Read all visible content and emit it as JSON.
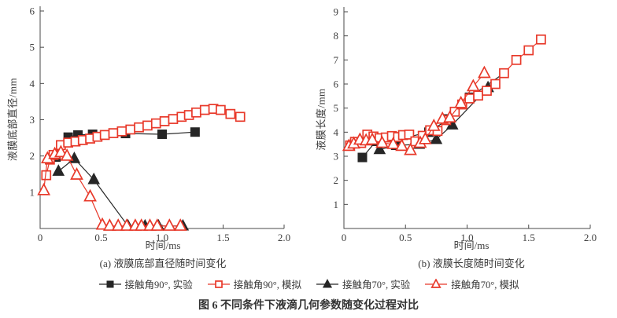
{
  "figure": {
    "caption": "图 6  不同条件下液滴几何参数随变化过程对比",
    "background": "#ffffff",
    "axis_color": "#4a4a4a",
    "text_color": "#3a3a3a",
    "experiment_color": "#262626",
    "simulation_color": "#e8392a",
    "legend": [
      {
        "key": "angle90-exp",
        "label": "接触角90°, 实验",
        "marker": "square-filled",
        "color": "#262626"
      },
      {
        "key": "angle90-sim",
        "label": "接触角90°, 模拟",
        "marker": "square-open",
        "color": "#e8392a"
      },
      {
        "key": "angle70-exp",
        "label": "接触角70°, 实验",
        "marker": "triangle-filled",
        "color": "#262626"
      },
      {
        "key": "angle70-sim",
        "label": "接触角70°, 模拟",
        "marker": "triangle-open",
        "color": "#e8392a"
      }
    ]
  },
  "chart_data": [
    {
      "id": "a",
      "type": "line-scatter",
      "subtitle": "(a) 液膜底部直径随时间变化",
      "xlabel": "时间/ms",
      "ylabel": "液膜底部直径/mm",
      "xlim": [
        0,
        2.0
      ],
      "ylim": [
        0,
        6
      ],
      "xticks": [
        0,
        0.5,
        1.0,
        1.5,
        2.0
      ],
      "xtick_labels": [
        "0",
        "0.5",
        "1.0",
        "1.5",
        "2.0"
      ],
      "yticks": [
        0,
        1,
        2,
        3,
        4,
        5,
        6
      ],
      "ytick_labels": [
        "",
        "1",
        "2",
        "3",
        "4",
        "5",
        "6"
      ],
      "grid": false,
      "legend_position": "bottom-shared",
      "series": [
        {
          "key": "angle90-exp",
          "name": "接触角90°, 实验",
          "marker": "square-filled",
          "color": "#262626",
          "points": [
            [
              0.13,
              1.97
            ],
            [
              0.23,
              2.52
            ],
            [
              0.31,
              2.58
            ],
            [
              0.43,
              2.6
            ],
            [
              0.7,
              2.62
            ],
            [
              1.0,
              2.6
            ],
            [
              1.27,
              2.66
            ]
          ]
        },
        {
          "key": "angle90-sim",
          "name": "接触角90°, 模拟",
          "marker": "square-open",
          "color": "#e8392a",
          "points": [
            [
              0.05,
              1.47
            ],
            [
              0.08,
              1.9
            ],
            [
              0.11,
              2.03
            ],
            [
              0.17,
              2.3
            ],
            [
              0.23,
              2.37
            ],
            [
              0.29,
              2.4
            ],
            [
              0.35,
              2.44
            ],
            [
              0.41,
              2.48
            ],
            [
              0.47,
              2.53
            ],
            [
              0.53,
              2.58
            ],
            [
              0.6,
              2.63
            ],
            [
              0.67,
              2.68
            ],
            [
              0.74,
              2.73
            ],
            [
              0.81,
              2.79
            ],
            [
              0.88,
              2.84
            ],
            [
              0.95,
              2.9
            ],
            [
              1.02,
              2.96
            ],
            [
              1.09,
              3.02
            ],
            [
              1.16,
              3.08
            ],
            [
              1.22,
              3.13
            ],
            [
              1.28,
              3.2
            ],
            [
              1.35,
              3.27
            ],
            [
              1.42,
              3.3
            ],
            [
              1.48,
              3.27
            ],
            [
              1.56,
              3.16
            ],
            [
              1.64,
              3.08
            ]
          ]
        },
        {
          "key": "angle70-exp",
          "name": "接触角70°, 实验",
          "marker": "triangle-filled",
          "color": "#262626",
          "points": [
            [
              0.15,
              1.58
            ],
            [
              0.28,
              1.93
            ],
            [
              0.44,
              1.35
            ],
            [
              0.72,
              0.07
            ],
            [
              0.86,
              0.07
            ],
            [
              0.97,
              0.07
            ],
            [
              1.17,
              0.07
            ]
          ]
        },
        {
          "key": "angle70-sim",
          "name": "接触角70°, 模拟",
          "marker": "triangle-open",
          "color": "#e8392a",
          "points": [
            [
              0.03,
              1.05
            ],
            [
              0.06,
              1.93
            ],
            [
              0.12,
              2.05
            ],
            [
              0.17,
              2.1
            ],
            [
              0.22,
              2.0
            ],
            [
              0.3,
              1.48
            ],
            [
              0.41,
              0.88
            ],
            [
              0.51,
              0.1
            ],
            [
              0.57,
              0.07
            ],
            [
              0.64,
              0.07
            ],
            [
              0.71,
              0.07
            ],
            [
              0.78,
              0.07
            ],
            [
              0.83,
              0.07
            ],
            [
              0.9,
              0.07
            ],
            [
              0.96,
              0.07
            ],
            [
              1.06,
              0.07
            ],
            [
              1.15,
              0.07
            ]
          ]
        }
      ]
    },
    {
      "id": "b",
      "type": "line-scatter",
      "subtitle": "(b) 液膜长度随时间变化",
      "xlabel": "时间/ms",
      "ylabel": "液膜长度/mm",
      "xlim": [
        0,
        2.0
      ],
      "ylim": [
        0,
        9
      ],
      "xticks": [
        0,
        0.5,
        1.0,
        1.5,
        2.0
      ],
      "xtick_labels": [
        "0",
        "0.5",
        "1.0",
        "1.5",
        "2.0"
      ],
      "yticks": [
        0,
        1,
        2,
        3,
        4,
        5,
        6,
        7,
        8,
        9
      ],
      "ytick_labels": [
        "",
        "1",
        "2",
        "3",
        "4",
        "5",
        "6",
        "7",
        "8",
        "9"
      ],
      "grid": false,
      "legend_position": "bottom-shared",
      "series": [
        {
          "key": "angle90-exp",
          "name": "接触角90°, 实验",
          "marker": "square-filled",
          "color": "#262626",
          "points": [
            [
              0.15,
              2.95
            ],
            [
              0.26,
              3.62
            ],
            [
              0.42,
              3.68
            ],
            [
              0.69,
              4.0
            ],
            [
              0.85,
              4.55
            ],
            [
              1.02,
              5.45
            ],
            [
              1.3,
              6.45
            ]
          ]
        },
        {
          "key": "angle90-sim",
          "name": "接触角90°, 模拟",
          "marker": "square-open",
          "color": "#e8392a",
          "points": [
            [
              0.05,
              3.45
            ],
            [
              0.09,
              3.6
            ],
            [
              0.14,
              3.55
            ],
            [
              0.19,
              3.9
            ],
            [
              0.24,
              3.82
            ],
            [
              0.29,
              3.75
            ],
            [
              0.34,
              3.78
            ],
            [
              0.39,
              3.84
            ],
            [
              0.44,
              3.8
            ],
            [
              0.48,
              3.88
            ],
            [
              0.53,
              3.9
            ],
            [
              0.58,
              3.62
            ],
            [
              0.64,
              3.85
            ],
            [
              0.7,
              4.08
            ],
            [
              0.76,
              4.05
            ],
            [
              0.83,
              4.5
            ],
            [
              0.9,
              4.85
            ],
            [
              0.96,
              5.15
            ],
            [
              1.02,
              5.4
            ],
            [
              1.09,
              5.52
            ],
            [
              1.16,
              5.72
            ],
            [
              1.23,
              6.0
            ],
            [
              1.3,
              6.45
            ],
            [
              1.4,
              7.0
            ],
            [
              1.5,
              7.4
            ],
            [
              1.6,
              7.85
            ]
          ]
        },
        {
          "key": "angle70-exp",
          "name": "接触角70°, 实验",
          "marker": "triangle-filled",
          "color": "#262626",
          "points": [
            [
              0.29,
              3.28
            ],
            [
              0.43,
              3.45
            ],
            [
              0.61,
              3.5
            ],
            [
              0.75,
              3.7
            ],
            [
              0.88,
              4.3
            ],
            [
              1.17,
              5.85
            ]
          ]
        },
        {
          "key": "angle70-sim",
          "name": "接触角70°, 模拟",
          "marker": "triangle-open",
          "color": "#e8392a",
          "points": [
            [
              0.04,
              3.42
            ],
            [
              0.08,
              3.52
            ],
            [
              0.13,
              3.68
            ],
            [
              0.18,
              3.65
            ],
            [
              0.23,
              3.68
            ],
            [
              0.31,
              3.55
            ],
            [
              0.4,
              3.5
            ],
            [
              0.47,
              3.42
            ],
            [
              0.54,
              3.25
            ],
            [
              0.62,
              3.55
            ],
            [
              0.66,
              3.7
            ],
            [
              0.73,
              4.25
            ],
            [
              0.8,
              4.55
            ],
            [
              0.86,
              4.6
            ],
            [
              0.95,
              5.2
            ],
            [
              1.05,
              5.9
            ],
            [
              1.14,
              6.45
            ]
          ]
        }
      ]
    }
  ]
}
